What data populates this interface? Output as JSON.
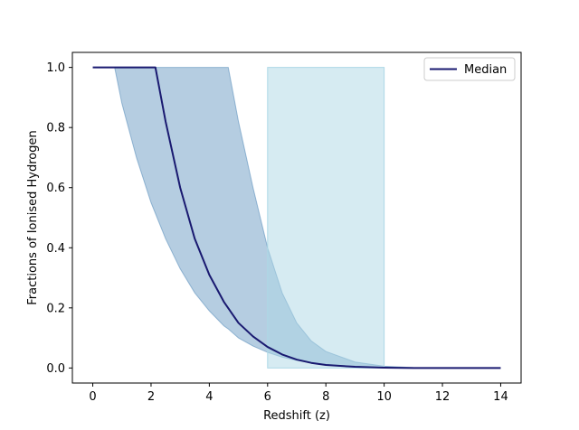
{
  "chart_data": {
    "type": "line",
    "title": "",
    "xlabel": "Redshift (z)",
    "ylabel": "Fractions of Ionised Hydrogen",
    "xlim": [
      -0.7,
      14.7
    ],
    "ylim": [
      -0.05,
      1.05
    ],
    "x_ticks": [
      0,
      2,
      4,
      6,
      8,
      10,
      12,
      14
    ],
    "y_ticks": [
      0.0,
      0.2,
      0.4,
      0.6,
      0.8,
      1.0
    ],
    "x_tick_labels": [
      "0",
      "2",
      "4",
      "6",
      "8",
      "10",
      "12",
      "14"
    ],
    "y_tick_labels": [
      "0.0",
      "0.2",
      "0.4",
      "0.6",
      "0.8",
      "1.0"
    ],
    "grid": false,
    "legend_position": "top-right",
    "series": [
      {
        "name": "Median",
        "color": "#191970",
        "x": [
          0,
          1,
          2,
          2.15,
          2.5,
          3,
          3.5,
          4,
          4.5,
          5,
          5.5,
          6,
          6.5,
          7,
          7.5,
          8,
          9,
          10,
          11,
          12,
          13,
          14
        ],
        "y": [
          1.0,
          1.0,
          1.0,
          1.0,
          0.82,
          0.6,
          0.43,
          0.31,
          0.22,
          0.15,
          0.105,
          0.07,
          0.045,
          0.028,
          0.017,
          0.01,
          0.004,
          0.001,
          0.0,
          0.0,
          0.0,
          0.0
        ]
      }
    ],
    "band": {
      "color": "#4682b4",
      "opacity": 0.4,
      "x": [
        0.75,
        1,
        1.5,
        2,
        2.5,
        3,
        3.5,
        4,
        4.5,
        4.65,
        5,
        5.5,
        6,
        6.5,
        7,
        7.5,
        8,
        9,
        10,
        11,
        12,
        13,
        14
      ],
      "lower": [
        1.0,
        0.88,
        0.7,
        0.55,
        0.43,
        0.33,
        0.25,
        0.19,
        0.14,
        0.13,
        0.1,
        0.073,
        0.052,
        0.036,
        0.025,
        0.017,
        0.012,
        0.005,
        0.002,
        0.0,
        0.0,
        0.0,
        0.0
      ],
      "upper": [
        1.0,
        1.0,
        1.0,
        1.0,
        1.0,
        1.0,
        1.0,
        1.0,
        1.0,
        1.0,
        0.82,
        0.6,
        0.4,
        0.25,
        0.15,
        0.09,
        0.055,
        0.02,
        0.006,
        0.0015,
        0.0,
        0.0,
        0.0
      ]
    },
    "span": {
      "color": "#add8e6",
      "opacity": 0.5,
      "x_start": 6,
      "x_end": 10,
      "y_start": 0.0,
      "y_end": 1.0
    }
  }
}
